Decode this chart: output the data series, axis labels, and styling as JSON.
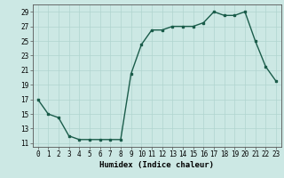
{
  "x": [
    0,
    1,
    2,
    3,
    4,
    5,
    6,
    7,
    8,
    9,
    10,
    11,
    12,
    13,
    14,
    15,
    16,
    17,
    18,
    19,
    20,
    21,
    22,
    23
  ],
  "y": [
    17,
    15,
    14.5,
    12,
    11.5,
    11.5,
    11.5,
    11.5,
    11.5,
    20.5,
    24.5,
    26.5,
    26.5,
    27,
    27,
    27,
    27.5,
    29,
    28.5,
    28.5,
    29,
    25,
    21.5,
    19.5
  ],
  "line_color": "#1a5c4a",
  "marker": "s",
  "marker_size": 2.0,
  "bg_color": "#cce8e4",
  "grid_color": "#b0d4cf",
  "xlabel": "Humidex (Indice chaleur)",
  "ylabel": "",
  "xlim": [
    -0.5,
    23.5
  ],
  "ylim": [
    10.5,
    30.0
  ],
  "yticks": [
    11,
    13,
    15,
    17,
    19,
    21,
    23,
    25,
    27,
    29
  ],
  "xticks": [
    0,
    1,
    2,
    3,
    4,
    5,
    6,
    7,
    8,
    9,
    10,
    11,
    12,
    13,
    14,
    15,
    16,
    17,
    18,
    19,
    20,
    21,
    22,
    23
  ],
  "tick_fontsize": 5.5,
  "xlabel_fontsize": 6.5,
  "linewidth": 1.0
}
